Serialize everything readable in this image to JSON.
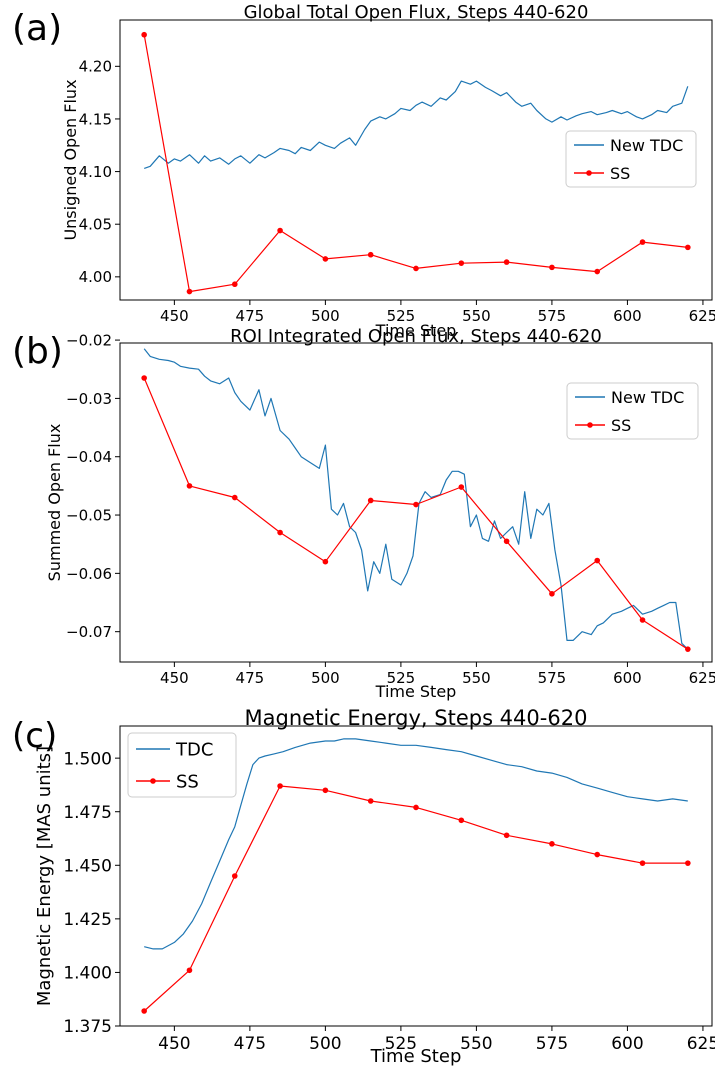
{
  "colors": {
    "tdc": "#1f77b4",
    "ss": "#ff0000"
  },
  "chart_data": [
    {
      "type": "line",
      "panel": "(a)",
      "title": "Global Total Open Flux, Steps 440-620",
      "xlabel": "Time Step",
      "ylabel": "Unsigned Open Flux",
      "xlim": [
        432,
        628
      ],
      "ylim": [
        3.978,
        4.244
      ],
      "xticks": [
        450,
        475,
        500,
        525,
        550,
        575,
        600,
        625
      ],
      "yticks": [
        4.0,
        4.05,
        4.1,
        4.15,
        4.2
      ],
      "ytick_labels": [
        "4.00",
        "4.05",
        "4.10",
        "4.15",
        "4.20"
      ],
      "legend_position": "center-right",
      "series": [
        {
          "name": "New TDC",
          "color": "#1f77b4",
          "marker": false,
          "x": [
            440,
            442,
            445,
            448,
            450,
            452,
            455,
            458,
            460,
            462,
            465,
            468,
            470,
            472,
            475,
            478,
            480,
            483,
            485,
            488,
            490,
            492,
            495,
            498,
            500,
            503,
            505,
            508,
            510,
            513,
            515,
            518,
            520,
            523,
            525,
            528,
            530,
            532,
            535,
            538,
            540,
            543,
            545,
            548,
            550,
            553,
            555,
            558,
            560,
            563,
            565,
            568,
            570,
            573,
            575,
            578,
            580,
            583,
            585,
            588,
            590,
            593,
            595,
            598,
            600,
            603,
            605,
            608,
            610,
            613,
            615,
            618,
            620
          ],
          "y": [
            4.103,
            4.105,
            4.115,
            4.108,
            4.112,
            4.11,
            4.116,
            4.108,
            4.115,
            4.11,
            4.113,
            4.107,
            4.112,
            4.115,
            4.108,
            4.116,
            4.113,
            4.118,
            4.122,
            4.12,
            4.117,
            4.123,
            4.12,
            4.128,
            4.125,
            4.122,
            4.127,
            4.132,
            4.125,
            4.14,
            4.148,
            4.152,
            4.15,
            4.155,
            4.16,
            4.158,
            4.163,
            4.166,
            4.162,
            4.17,
            4.168,
            4.176,
            4.186,
            4.183,
            4.186,
            4.18,
            4.177,
            4.172,
            4.175,
            4.166,
            4.162,
            4.165,
            4.158,
            4.15,
            4.147,
            4.152,
            4.149,
            4.153,
            4.155,
            4.157,
            4.154,
            4.156,
            4.158,
            4.155,
            4.157,
            4.152,
            4.15,
            4.154,
            4.158,
            4.156,
            4.162,
            4.165,
            4.181
          ]
        },
        {
          "name": "SS",
          "color": "#ff0000",
          "marker": true,
          "x": [
            440,
            455,
            470,
            485,
            500,
            515,
            530,
            545,
            560,
            575,
            590,
            605,
            620
          ],
          "y": [
            4.23,
            3.986,
            3.993,
            4.044,
            4.017,
            4.021,
            4.008,
            4.013,
            4.014,
            4.009,
            4.005,
            4.033,
            4.028
          ]
        }
      ]
    },
    {
      "type": "line",
      "panel": "(b)",
      "title": "ROI Integrated Open Flux, Steps 440-620",
      "xlabel": "Time Step",
      "ylabel": "Summed Open Flux",
      "xlim": [
        432,
        628
      ],
      "ylim": [
        -0.0752,
        -0.0205
      ],
      "xticks": [
        450,
        475,
        500,
        525,
        550,
        575,
        600,
        625
      ],
      "yticks": [
        -0.07,
        -0.06,
        -0.05,
        -0.04,
        -0.03,
        -0.02
      ],
      "ytick_labels": [
        "−0.07",
        "−0.06",
        "−0.05",
        "−0.04",
        "−0.03",
        "−0.02"
      ],
      "legend_position": "top-right",
      "series": [
        {
          "name": "New TDC",
          "color": "#1f77b4",
          "marker": false,
          "x": [
            440,
            442,
            445,
            448,
            450,
            452,
            455,
            458,
            460,
            462,
            465,
            468,
            470,
            472,
            475,
            478,
            480,
            482,
            485,
            488,
            490,
            492,
            495,
            498,
            500,
            502,
            504,
            506,
            508,
            510,
            512,
            514,
            516,
            518,
            520,
            522,
            525,
            527,
            529,
            531,
            533,
            535,
            538,
            540,
            542,
            544,
            546,
            548,
            550,
            552,
            554,
            556,
            558,
            560,
            562,
            564,
            566,
            568,
            570,
            572,
            574,
            576,
            578,
            580,
            582,
            585,
            588,
            590,
            592,
            595,
            598,
            600,
            602,
            605,
            608,
            610,
            612,
            614,
            616,
            618,
            620
          ],
          "y": [
            -0.0215,
            -0.0228,
            -0.0233,
            -0.0235,
            -0.0238,
            -0.0245,
            -0.0248,
            -0.025,
            -0.0262,
            -0.027,
            -0.0275,
            -0.0265,
            -0.029,
            -0.0305,
            -0.032,
            -0.0285,
            -0.033,
            -0.03,
            -0.0355,
            -0.037,
            -0.0385,
            -0.04,
            -0.041,
            -0.042,
            -0.038,
            -0.049,
            -0.05,
            -0.048,
            -0.052,
            -0.053,
            -0.056,
            -0.063,
            -0.058,
            -0.06,
            -0.055,
            -0.061,
            -0.062,
            -0.06,
            -0.057,
            -0.048,
            -0.046,
            -0.047,
            -0.0465,
            -0.044,
            -0.0425,
            -0.0425,
            -0.043,
            -0.052,
            -0.05,
            -0.054,
            -0.0545,
            -0.051,
            -0.054,
            -0.053,
            -0.052,
            -0.055,
            -0.046,
            -0.054,
            -0.049,
            -0.05,
            -0.048,
            -0.056,
            -0.062,
            -0.0715,
            -0.0715,
            -0.07,
            -0.0705,
            -0.069,
            -0.0685,
            -0.067,
            -0.0665,
            -0.066,
            -0.0655,
            -0.067,
            -0.0665,
            -0.066,
            -0.0655,
            -0.065,
            -0.065,
            -0.072,
            -0.073
          ]
        },
        {
          "name": "SS",
          "color": "#ff0000",
          "marker": true,
          "x": [
            440,
            455,
            470,
            485,
            500,
            515,
            530,
            545,
            560,
            575,
            590,
            605,
            620
          ],
          "y": [
            -0.0265,
            -0.045,
            -0.047,
            -0.053,
            -0.058,
            -0.0475,
            -0.0482,
            -0.0452,
            -0.0545,
            -0.0635,
            -0.0578,
            -0.068,
            -0.073
          ]
        }
      ]
    },
    {
      "type": "line",
      "panel": "(c)",
      "title": "Magnetic Energy, Steps 440-620",
      "xlabel": "Time Step",
      "ylabel": "Magnetic Energy [MAS units]",
      "xlim": [
        432,
        628
      ],
      "ylim": [
        1.375,
        1.515
      ],
      "xticks": [
        450,
        475,
        500,
        525,
        550,
        575,
        600,
        625
      ],
      "yticks": [
        1.375,
        1.4,
        1.425,
        1.45,
        1.475,
        1.5
      ],
      "ytick_labels": [
        "1.375",
        "1.400",
        "1.425",
        "1.450",
        "1.475",
        "1.500"
      ],
      "legend_position": "top-left",
      "series": [
        {
          "name": "TDC",
          "color": "#1f77b4",
          "marker": false,
          "x": [
            440,
            443,
            446,
            450,
            453,
            456,
            459,
            462,
            465,
            468,
            470,
            472,
            474,
            476,
            478,
            480,
            483,
            486,
            490,
            495,
            500,
            503,
            506,
            510,
            515,
            520,
            525,
            530,
            535,
            540,
            545,
            550,
            555,
            560,
            565,
            570,
            575,
            580,
            585,
            590,
            595,
            600,
            605,
            610,
            615,
            620
          ],
          "y": [
            1.412,
            1.411,
            1.411,
            1.414,
            1.418,
            1.424,
            1.432,
            1.442,
            1.452,
            1.462,
            1.468,
            1.478,
            1.488,
            1.497,
            1.5,
            1.501,
            1.502,
            1.503,
            1.505,
            1.507,
            1.508,
            1.508,
            1.509,
            1.509,
            1.508,
            1.507,
            1.506,
            1.506,
            1.505,
            1.504,
            1.503,
            1.501,
            1.499,
            1.497,
            1.496,
            1.494,
            1.493,
            1.491,
            1.488,
            1.486,
            1.484,
            1.482,
            1.481,
            1.48,
            1.481,
            1.48
          ]
        },
        {
          "name": "SS",
          "color": "#ff0000",
          "marker": true,
          "x": [
            440,
            455,
            470,
            485,
            500,
            515,
            530,
            545,
            560,
            575,
            590,
            605,
            620
          ],
          "y": [
            1.382,
            1.401,
            1.445,
            1.487,
            1.485,
            1.48,
            1.477,
            1.471,
            1.464,
            1.46,
            1.455,
            1.451,
            1.451
          ]
        }
      ]
    }
  ]
}
